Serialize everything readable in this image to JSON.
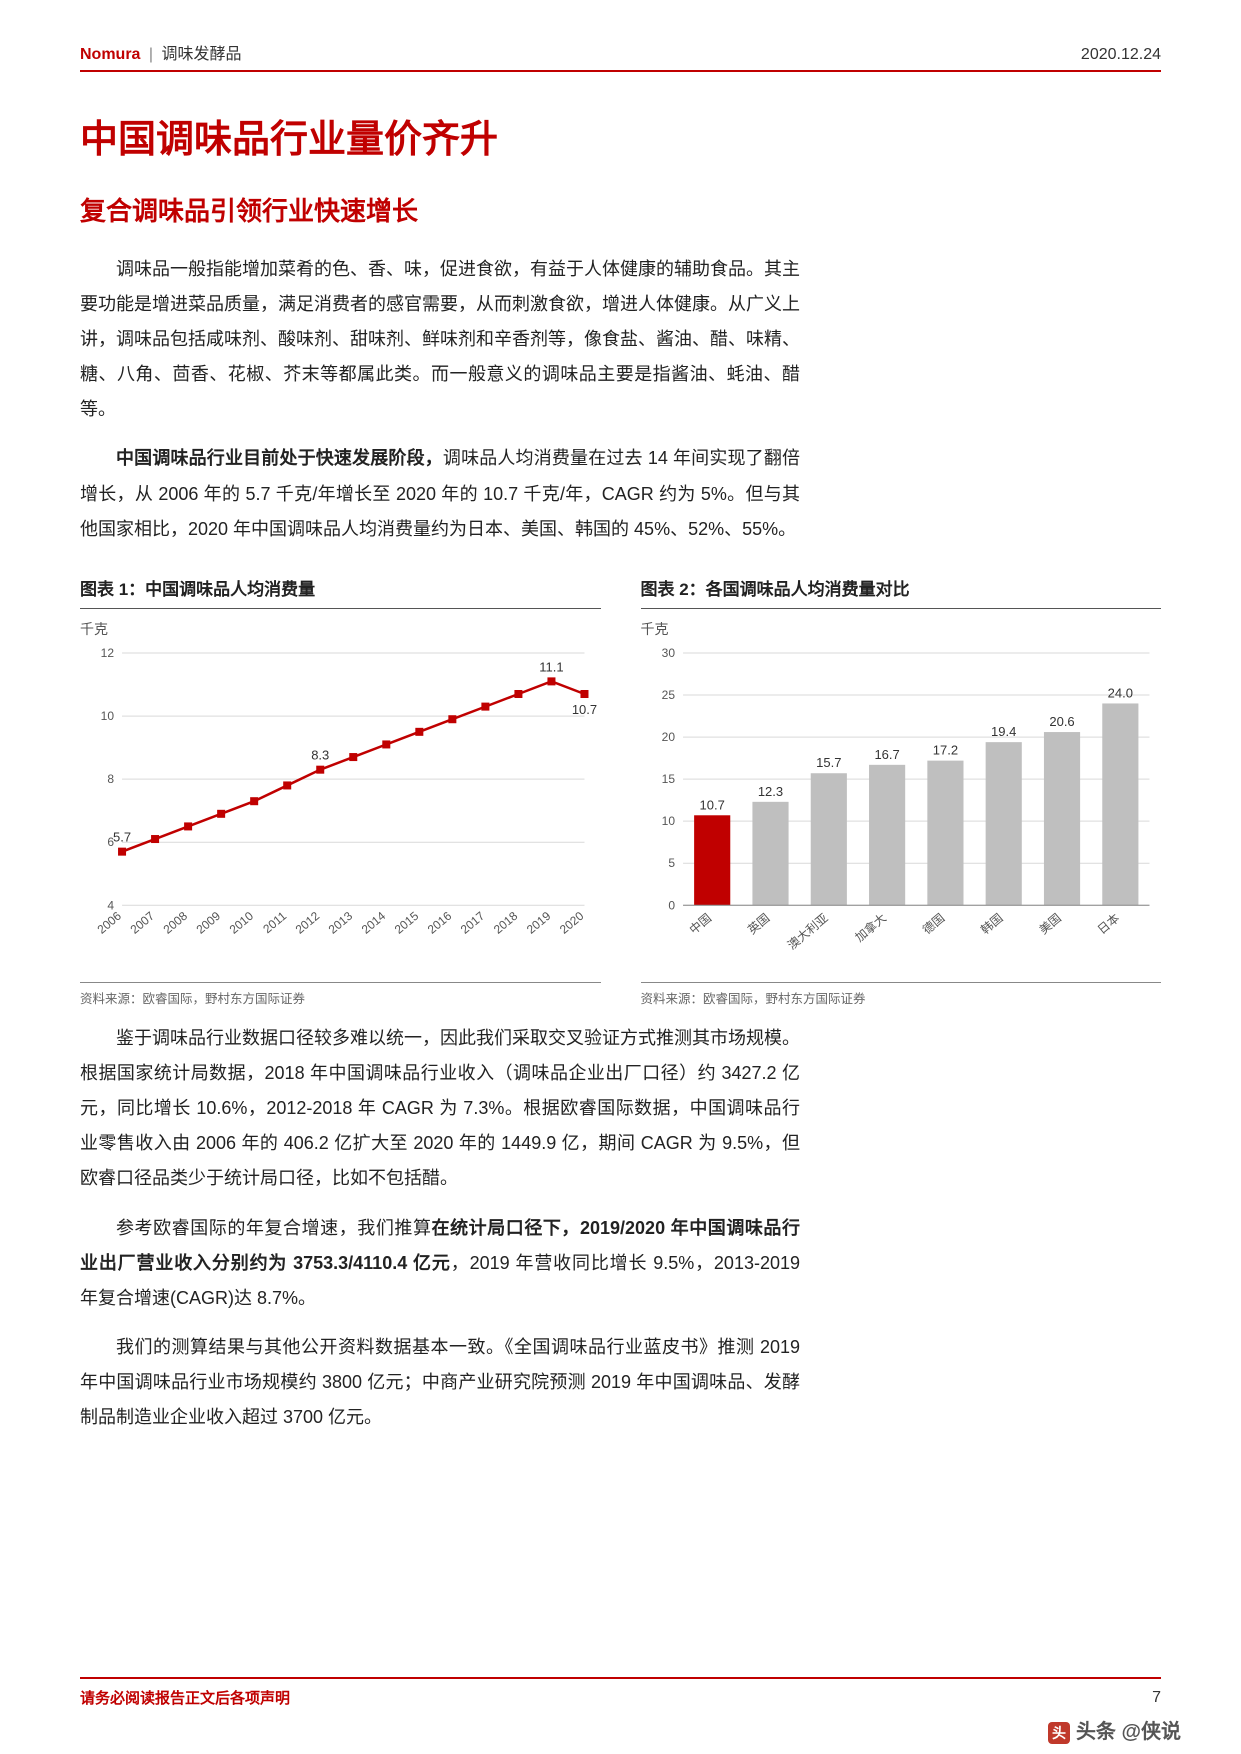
{
  "header": {
    "brand": "Nomura",
    "category": "调味发酵品",
    "date": "2020.12.24"
  },
  "title": "中国调味品行业量价齐升",
  "subtitle": "复合调味品引领行业快速增长",
  "para1": "调味品一般指能增加菜肴的色、香、味，促进食欲，有益于人体健康的辅助食品。其主要功能是增进菜品质量，满足消费者的感官需要，从而刺激食欲，增进人体健康。从广义上讲，调味品包括咸味剂、酸味剂、甜味剂、鲜味剂和辛香剂等，像食盐、酱油、醋、味精、糖、八角、茴香、花椒、芥末等都属此类。而一般意义的调味品主要是指酱油、蚝油、醋等。",
  "para2_bold": "中国调味品行业目前处于快速发展阶段，",
  "para2_rest": "调味品人均消费量在过去 14 年间实现了翻倍增长，从 2006 年的 5.7 千克/年增长至 2020 年的 10.7 千克/年，CAGR 约为 5%。但与其他国家相比，2020 年中国调味品人均消费量约为日本、美国、韩国的 45%、52%、55%。",
  "chart1": {
    "title": "图表 1：中国调味品人均消费量",
    "ylabel": "千克",
    "type": "line",
    "years": [
      "2006",
      "2007",
      "2008",
      "2009",
      "2010",
      "2011",
      "2012",
      "2013",
      "2014",
      "2015",
      "2016",
      "2017",
      "2018",
      "2019",
      "2020"
    ],
    "values": [
      5.7,
      6.1,
      6.5,
      6.9,
      7.3,
      7.8,
      8.3,
      8.7,
      9.1,
      9.5,
      9.9,
      10.3,
      10.7,
      11.1,
      10.7
    ],
    "point_labels": {
      "0": "5.7",
      "6": "8.3",
      "13": "11.1",
      "14": "10.7"
    },
    "ylim": [
      4,
      12
    ],
    "ytick_step": 2,
    "line_color": "#c00000",
    "marker_color": "#c00000",
    "marker_size": 4,
    "line_width": 2.5,
    "grid_color": "#d9d9d9",
    "label_fontsize": 12,
    "source": "资料来源：欧睿国际，野村东方国际证券"
  },
  "chart2": {
    "title": "图表 2：各国调味品人均消费量对比",
    "ylabel": "千克",
    "type": "bar",
    "categories": [
      "中国",
      "英国",
      "澳大利亚",
      "加拿大",
      "德国",
      "韩国",
      "美国",
      "日本"
    ],
    "values": [
      10.7,
      12.3,
      15.7,
      16.7,
      17.2,
      19.4,
      20.6,
      24.0
    ],
    "bar_colors": [
      "#c00000",
      "#bfbfbf",
      "#bfbfbf",
      "#bfbfbf",
      "#bfbfbf",
      "#bfbfbf",
      "#bfbfbf",
      "#bfbfbf"
    ],
    "ylim": [
      0,
      30
    ],
    "ytick_step": 5,
    "grid_color": "#d9d9d9",
    "bar_width": 0.62,
    "label_fontsize": 12,
    "source": "资料来源：欧睿国际，野村东方国际证券"
  },
  "para3": "鉴于调味品行业数据口径较多难以统一，因此我们采取交叉验证方式推测其市场规模。根据国家统计局数据，2018 年中国调味品行业收入（调味品企业出厂口径）约 3427.2 亿元，同比增长 10.6%，2012-2018 年 CAGR 为 7.3%。根据欧睿国际数据，中国调味品行业零售收入由 2006 年的 406.2 亿扩大至 2020 年的 1449.9 亿，期间 CAGR 为 9.5%，但欧睿口径品类少于统计局口径，比如不包括醋。",
  "para4_lead": "参考欧睿国际的年复合增速，我们推算",
  "para4_bold": "在统计局口径下，2019/2020 年中国调味品行业出厂营业收入分别约为 3753.3/4110.4 亿元",
  "para4_rest": "，2019 年营收同比增长 9.5%，2013-2019 年复合增速(CAGR)达 8.7%。",
  "para5": "我们的测算结果与其他公开资料数据基本一致。《全国调味品行业蓝皮书》推测 2019 年中国调味品行业市场规模约 3800 亿元；中商产业研究院预测 2019 年中国调味品、发酵制品制造业企业收入超过 3700 亿元。",
  "footer": {
    "text": "请务必阅读报告正文后各项声明",
    "page": "7"
  },
  "watermark": "头条 @侠说"
}
